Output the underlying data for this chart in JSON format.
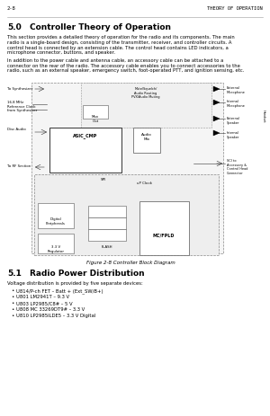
{
  "page_header_left": "2-8",
  "page_header_right": "THEORY OF OPERATION",
  "section_number": "5.0",
  "section_title": "Controller Theory of Operation",
  "body_text_1a": "This section provides a detailed theory of operation for the radio and its components. The main",
  "body_text_1b": "radio is a single-board design, consisting of the transmitter, receiver, and controller circuits. A",
  "body_text_1c": "control head is connected by an extension cable. The control head contains LED indicators, a",
  "body_text_1d": "microphone connector, buttons, and speaker.",
  "body_text_2a": "In addition to the power cable and antenna cable, an accessory cable can be attached to a",
  "body_text_2b": "connector on the rear of the radio. The accessory cable enables you to connect accessories to the",
  "body_text_2c": "radio, such as an external speaker, emergency switch, foot-operated PTT, and ignition sensing, etc.",
  "figure_caption": "Figure 2-8 Controller Block Diagram",
  "section2_number": "5.1",
  "section2_title": "Radio Power Distribution",
  "section2_intro": "Voltage distribution is provided by five separate devices:",
  "bullets": [
    "U814/P-ch FET – Batt + (Ext_SW/B+)",
    "U801 LM2941T – 9.3 V",
    "U803 LP2985/C8# – 5 V",
    "U808 MC 33269DT9# – 3.3 V",
    "U810 LP2985ILDE5 – 3.3 V Digital"
  ],
  "bg_color": "#ffffff",
  "text_color": "#000000",
  "gray_color": "#666666"
}
